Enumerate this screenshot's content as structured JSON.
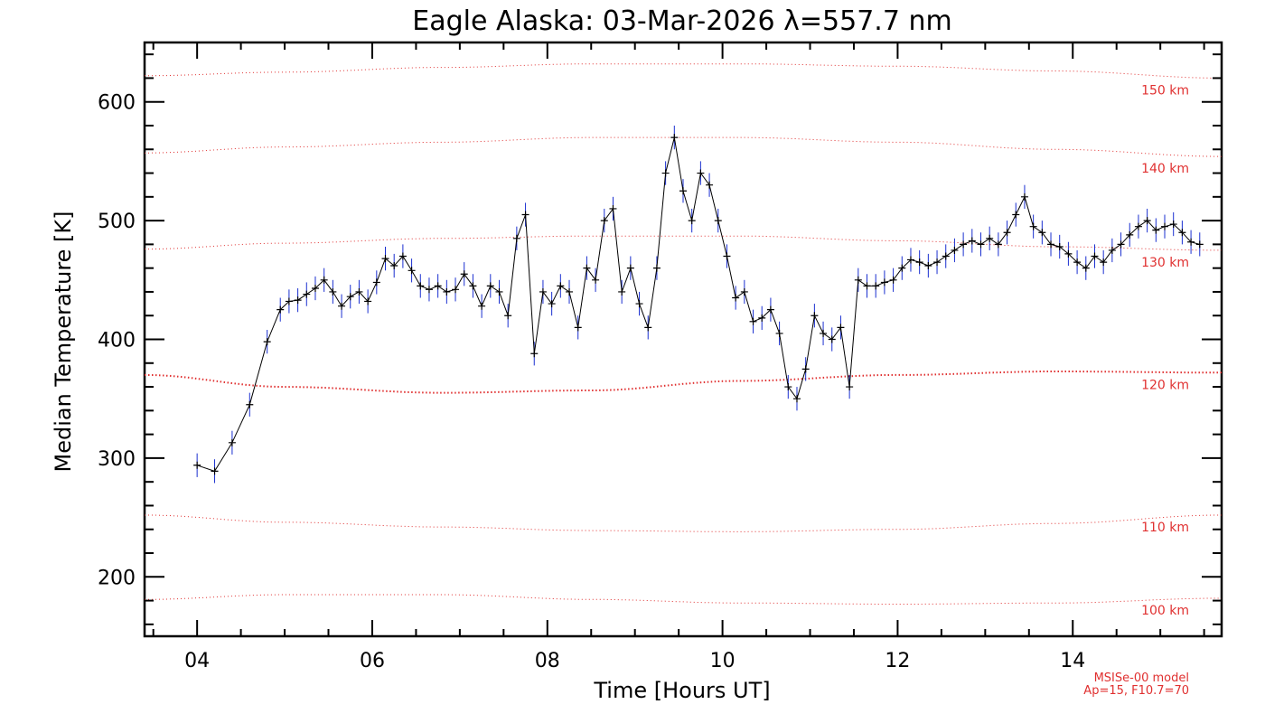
{
  "chart_data": {
    "type": "line",
    "title": "Eagle Alaska: 03-Mar-2026 λ=557.7 nm",
    "xlabel": "Time [Hours UT]",
    "ylabel": "Median Temperature [K]",
    "xlim": [
      3.4,
      15.7
    ],
    "ylim": [
      150,
      650
    ],
    "x_ticks": [
      4,
      6,
      8,
      10,
      12,
      14
    ],
    "x_tick_labels": [
      "04",
      "06",
      "08",
      "10",
      "12",
      "14"
    ],
    "y_ticks": [
      200,
      300,
      400,
      500,
      600
    ],
    "y_tick_labels": [
      "200",
      "300",
      "400",
      "500",
      "600"
    ],
    "grid": false,
    "colors": {
      "data_line": "#000000",
      "error_bars": "#1a2fd0",
      "model": "#e03030"
    },
    "series": [
      {
        "x": [
          4.0,
          4.2,
          4.4,
          4.6,
          4.8,
          4.95,
          5.05,
          5.15,
          5.25,
          5.35,
          5.45,
          5.55,
          5.65,
          5.75,
          5.85,
          5.95,
          6.05,
          6.15,
          6.25,
          6.35,
          6.45,
          6.55,
          6.65,
          6.75,
          6.85,
          6.95,
          7.05,
          7.15,
          7.25,
          7.35,
          7.45,
          7.55,
          7.65,
          7.75,
          7.85,
          7.95,
          8.05,
          8.15,
          8.25,
          8.35,
          8.45,
          8.55,
          8.65,
          8.75,
          8.85,
          8.95,
          9.05,
          9.15,
          9.25,
          9.35,
          9.45,
          9.55,
          9.65,
          9.75,
          9.85,
          9.95,
          10.05,
          10.15,
          10.25,
          10.35,
          10.45,
          10.55,
          10.65,
          10.75,
          10.85,
          10.95,
          11.05,
          11.15,
          11.25,
          11.35,
          11.45,
          11.55,
          11.65,
          11.75,
          11.85,
          11.95,
          12.05,
          12.15,
          12.25,
          12.35,
          12.45,
          12.55,
          12.65,
          12.75,
          12.85,
          12.95,
          13.05,
          13.15,
          13.25,
          13.35,
          13.45,
          13.55,
          13.65,
          13.75,
          13.85,
          13.95,
          14.05,
          14.15,
          14.25,
          14.35,
          14.45,
          14.55,
          14.65,
          14.75,
          14.85,
          14.95,
          15.05,
          15.15,
          15.25,
          15.35,
          15.45
        ],
        "y": [
          294,
          289,
          313,
          345,
          398,
          425,
          432,
          433,
          438,
          443,
          450,
          440,
          428,
          436,
          440,
          432,
          448,
          468,
          462,
          470,
          458,
          445,
          442,
          445,
          440,
          442,
          455,
          445,
          428,
          445,
          440,
          420,
          485,
          505,
          388,
          440,
          430,
          445,
          440,
          410,
          460,
          450,
          500,
          510,
          440,
          460,
          430,
          410,
          460,
          540,
          570,
          525,
          500,
          540,
          530,
          500,
          470,
          435,
          440,
          415,
          418,
          425,
          405,
          360,
          350,
          375,
          420,
          405,
          400,
          410,
          360,
          450,
          445,
          445,
          448,
          450,
          460,
          467,
          465,
          462,
          465,
          470,
          475,
          480,
          483,
          480,
          485,
          480,
          490,
          505,
          520,
          495,
          490,
          480,
          478,
          472,
          465,
          460,
          470,
          465,
          475,
          480,
          488,
          495,
          500,
          492,
          495,
          497,
          490,
          482,
          480
        ],
        "y_error": 10
      }
    ],
    "model_lines": [
      {
        "label": "150 km",
        "y": [
          622,
          625,
          629,
          632,
          632,
          630,
          626,
          620
        ]
      },
      {
        "label": "140 km",
        "y": [
          557,
          562,
          566,
          570,
          570,
          566,
          560,
          554
        ]
      },
      {
        "label": "130 km",
        "y": [
          476,
          481,
          485,
          487,
          487,
          483,
          478,
          475
        ]
      },
      {
        "label": "120 km",
        "y": [
          370,
          360,
          355,
          357,
          365,
          370,
          373,
          372
        ]
      },
      {
        "label": "110 km",
        "y": [
          252,
          246,
          242,
          239,
          238,
          240,
          245,
          252
        ]
      },
      {
        "label": "100 km",
        "y": [
          181,
          185,
          185,
          181,
          178,
          177,
          178,
          182
        ]
      }
    ],
    "model_x": [
      3.4,
      5.0,
      6.8,
      8.5,
      10.2,
      12.0,
      13.8,
      15.7
    ],
    "model_note": [
      "MSISe-00 model",
      "Ap=15, F10.7=70"
    ]
  }
}
